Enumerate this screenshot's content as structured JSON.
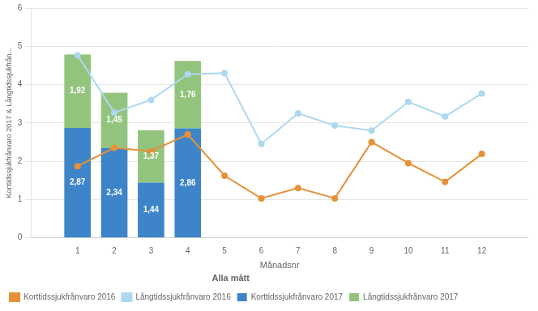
{
  "chart_data": {
    "type": "bar",
    "title": "Alla mått",
    "xlabel": "Månadsnr",
    "ylabel": "Korttidssjukfrånvaro 2017 & Långtidssjukfrån...",
    "x": [
      1,
      2,
      3,
      4,
      5,
      6,
      7,
      8,
      9,
      10,
      11,
      12
    ],
    "series": [
      {
        "name": "Korttidssjukfrånvaro 2017",
        "type": "bar",
        "color": "#3d85c8",
        "values": [
          2.87,
          2.34,
          1.44,
          2.86,
          null,
          null,
          null,
          null,
          null,
          null,
          null,
          null
        ],
        "value_labels": [
          "2,87",
          "2,34",
          "1,44",
          "2,86",
          null,
          null,
          null,
          null,
          null,
          null,
          null,
          null
        ]
      },
      {
        "name": "Långtidssjukfrånvaro 2017",
        "type": "bar",
        "color": "#93c47d",
        "values": [
          1.92,
          1.45,
          1.37,
          1.76,
          null,
          null,
          null,
          null,
          null,
          null,
          null,
          null
        ],
        "value_labels": [
          "1,92",
          "1,45",
          "1,37",
          "1,76",
          null,
          null,
          null,
          null,
          null,
          null,
          null,
          null
        ]
      },
      {
        "name": "Korttidssjukfrånvaro 2016",
        "type": "line",
        "color": "#e69138",
        "marker": "circle",
        "values": [
          1.87,
          2.35,
          2.26,
          2.7,
          1.62,
          1.03,
          1.3,
          1.03,
          2.5,
          1.95,
          1.46,
          2.19
        ]
      },
      {
        "name": "Långtidssjukfrånvaro 2016",
        "type": "line",
        "color": "#add8f0",
        "marker": "circle",
        "values": [
          4.77,
          3.27,
          3.6,
          4.27,
          4.3,
          2.45,
          3.25,
          2.93,
          2.8,
          3.55,
          3.17,
          3.77
        ]
      }
    ],
    "stacked": true,
    "data_labels": true,
    "xlim": [
      0.3,
      12.7
    ],
    "xticks": [
      1,
      2,
      3,
      4,
      5,
      6,
      7,
      8,
      9,
      10,
      11,
      12
    ],
    "ylim": [
      0,
      6
    ],
    "yticks": [
      0,
      1,
      2,
      3,
      4,
      5,
      6
    ],
    "grid": "y",
    "legend": "bottom"
  }
}
